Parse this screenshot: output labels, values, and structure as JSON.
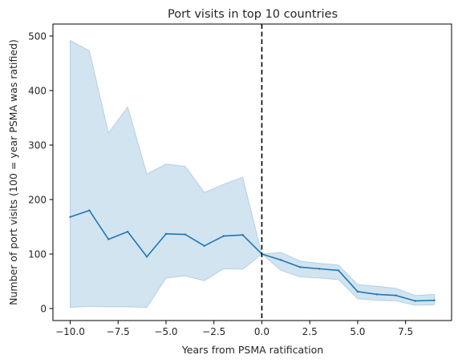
{
  "chart_data": {
    "type": "line",
    "title": "Port visits in top 10 countries",
    "xlabel": "Years from PSMA ratification",
    "ylabel": "Number of port visits (100 = year PSMA was ratified)",
    "xlim": [
      -10.9,
      9.9
    ],
    "ylim": [
      -22,
      522
    ],
    "xticks": [
      -10.0,
      -7.5,
      -5.0,
      -2.5,
      0.0,
      2.5,
      5.0,
      7.5
    ],
    "xtick_labels": [
      "−10.0",
      "−7.5",
      "−5.0",
      "−2.5",
      "0.0",
      "2.5",
      "5.0",
      "7.5"
    ],
    "yticks": [
      0,
      100,
      200,
      300,
      400,
      500
    ],
    "ytick_labels": [
      "0",
      "100",
      "200",
      "300",
      "400",
      "500"
    ],
    "grid": false,
    "reference_line": {
      "x": 0,
      "style": "dashed",
      "color": "#000000"
    },
    "series": [
      {
        "color": "#1f77b4",
        "band_color": "#1f77b4",
        "x": [
          -10,
          -9,
          -8,
          -7,
          -6,
          -5,
          -4,
          -3,
          -2,
          -1,
          0,
          1,
          2,
          3,
          4,
          5,
          6,
          7,
          8,
          9
        ],
        "y": [
          168,
          180,
          127,
          141,
          95,
          137,
          136,
          115,
          133,
          135,
          100,
          89,
          76,
          73,
          70,
          31,
          26,
          24,
          14,
          15
        ],
        "lower": [
          2,
          4,
          3,
          3,
          2,
          56,
          60,
          51,
          73,
          72,
          100,
          70,
          58,
          56,
          53,
          18,
          15,
          14,
          6,
          7
        ],
        "upper": [
          492,
          473,
          322,
          370,
          247,
          265,
          261,
          213,
          228,
          241,
          100,
          103,
          87,
          83,
          80,
          44,
          41,
          37,
          24,
          26
        ]
      }
    ]
  }
}
